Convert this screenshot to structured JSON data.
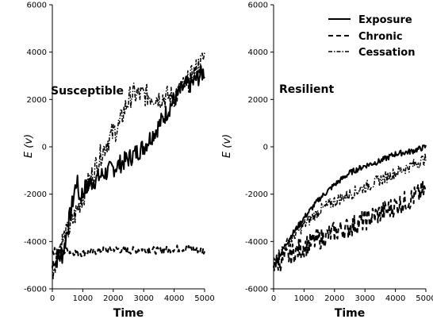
{
  "chart_data": [
    {
      "type": "line",
      "panel_label": "Susceptible",
      "xlabel": "Time",
      "ylabel": "E (v)",
      "xlim": [
        0,
        5000
      ],
      "ylim": [
        -6000,
        6000
      ],
      "xticks": [
        "0",
        "1000",
        "2000",
        "3000",
        "4000",
        "5000"
      ],
      "yticks": [
        "-6000",
        "-4000",
        "-2000",
        "0",
        "2000",
        "4000",
        "6000"
      ],
      "grid": false,
      "series": [
        {
          "name": "Exposure",
          "style": "solid",
          "x": [
            0,
            50,
            100,
            200,
            300,
            400,
            500,
            600,
            700,
            800,
            900,
            1000,
            1200,
            1500,
            2000,
            2500,
            3000,
            3500,
            4000,
            4300,
            4600,
            5000
          ],
          "y": [
            -5100,
            -4700,
            -4900,
            -4600,
            -4700,
            -4200,
            -3400,
            -2800,
            -2100,
            -1400,
            -2200,
            -1900,
            -1600,
            -1300,
            -900,
            -500,
            0,
            900,
            2000,
            2500,
            2700,
            3200
          ],
          "noise": 400
        },
        {
          "name": "Chronic",
          "style": "dashed",
          "x": [
            0,
            500,
            1000,
            1500,
            2000,
            2500,
            3000,
            3500,
            4000,
            4500,
            5000
          ],
          "y": [
            -4400,
            -4400,
            -4500,
            -4400,
            -4300,
            -4400,
            -4300,
            -4400,
            -4300,
            -4300,
            -4400
          ],
          "noise": 150
        },
        {
          "name": "Cessation",
          "style": "dash-dot",
          "x": [
            0,
            200,
            400,
            600,
            800,
            1000,
            1200,
            1400,
            1600,
            1800,
            2000,
            2200,
            2400,
            2600,
            3000,
            3500,
            4000,
            4500,
            5000
          ],
          "y": [
            -5300,
            -4300,
            -3800,
            -3400,
            -2700,
            -2100,
            -1500,
            -900,
            -300,
            200,
            600,
            900,
            1700,
            2200,
            2200,
            2100,
            2100,
            2800,
            3800
          ],
          "noise": 500
        }
      ]
    },
    {
      "type": "line",
      "panel_label": "Resilient",
      "xlabel": "Time",
      "ylabel": "E (v)",
      "xlim": [
        0,
        5000
      ],
      "ylim": [
        -6000,
        6000
      ],
      "xticks": [
        "0",
        "1000",
        "2000",
        "3000",
        "4000",
        "5000"
      ],
      "yticks": [
        "-6000",
        "-4000",
        "-2000",
        "0",
        "2000",
        "4000",
        "6000"
      ],
      "grid": false,
      "legend": {
        "placement": "top-right"
      },
      "series": [
        {
          "name": "Exposure",
          "style": "solid",
          "x": [
            0,
            100,
            500,
            1000,
            1500,
            2000,
            2500,
            3000,
            3500,
            4000,
            4500,
            5000
          ],
          "y": [
            -5000,
            -4800,
            -3900,
            -3000,
            -2200,
            -1600,
            -1100,
            -800,
            -600,
            -300,
            -200,
            0
          ],
          "noise": 120
        },
        {
          "name": "Chronic",
          "style": "dashed",
          "x": [
            0,
            500,
            1000,
            1500,
            2000,
            2500,
            3000,
            3500,
            4000,
            4500,
            5000
          ],
          "y": [
            -5000,
            -4600,
            -4200,
            -3900,
            -3600,
            -3400,
            -3100,
            -2800,
            -2500,
            -2200,
            -1800
          ],
          "noise": 450
        },
        {
          "name": "Cessation",
          "style": "dash-dot",
          "x": [
            0,
            500,
            1000,
            1500,
            2000,
            2500,
            3000,
            3500,
            4000,
            4500,
            5000
          ],
          "y": [
            -4800,
            -4000,
            -3300,
            -2700,
            -2300,
            -2000,
            -1700,
            -1400,
            -1100,
            -800,
            -500
          ],
          "noise": 250
        }
      ]
    }
  ]
}
